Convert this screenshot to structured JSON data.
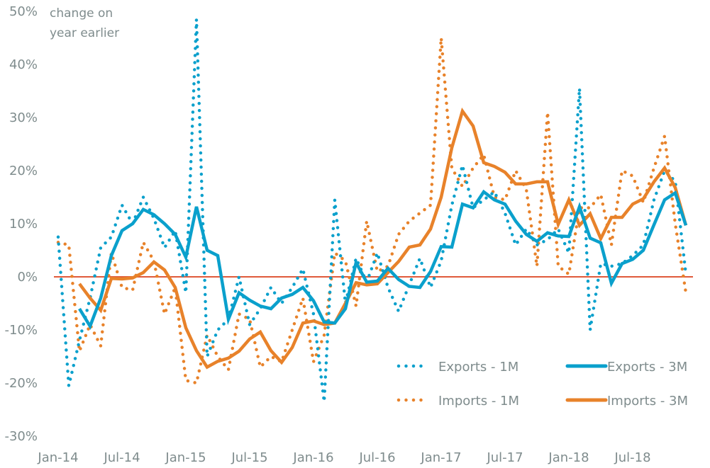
{
  "chart_data": {
    "type": "line",
    "title": "",
    "ylabel_lines": [
      "change on",
      "year earlier"
    ],
    "xlabel": "",
    "ylim": [
      -30,
      50
    ],
    "yticks": [
      50,
      40,
      30,
      20,
      10,
      0,
      -10,
      -20,
      -30
    ],
    "ytick_labels": [
      "50%",
      "40%",
      "30%",
      "20%",
      "10%",
      "0%",
      "-10%",
      "-20%",
      "-30%"
    ],
    "xtick_labels": [
      "Jan-14",
      "Jul-14",
      "Jan-15",
      "Jul-15",
      "Jan-16",
      "Jul-16",
      "Jan-17",
      "Jul-17",
      "Jan-18",
      "Jul-18"
    ],
    "xtick_month_index": [
      0,
      6,
      12,
      18,
      24,
      30,
      36,
      42,
      48,
      54
    ],
    "x_start": "Jan-14",
    "x_end": "Dec-18",
    "n_months": 60,
    "zero_line_color": "#e05a3a",
    "grid": false,
    "legend_position": "bottom-right",
    "series": [
      {
        "name": "Exports - 1M",
        "style": "dotted",
        "color": "#0aa0cc",
        "start_index": 0,
        "values": [
          7.5,
          -20.5,
          -12,
          -4,
          5.5,
          7.5,
          13.5,
          10,
          15,
          11,
          5.5,
          8.7,
          -3,
          48.5,
          -15,
          -10,
          -8,
          0,
          -9,
          -6,
          -2,
          -5,
          -2,
          1.5,
          -7,
          -23.5,
          14.5,
          -5,
          3.5,
          -1,
          4.5,
          -2,
          -6.5,
          -1.5,
          3.5,
          -2,
          3,
          13.5,
          21,
          13,
          14.5,
          16,
          12,
          6,
          9,
          6,
          7,
          9,
          4.5,
          35.5,
          -10,
          2.5,
          2,
          2.5,
          4,
          6,
          14.5,
          20,
          18,
          0.5
        ]
      },
      {
        "name": "Exports - 3M",
        "style": "solid",
        "color": "#0aa0cc",
        "start_index": 2,
        "values": [
          -6,
          -9.3,
          -4,
          4,
          8.7,
          10,
          12.7,
          11.7,
          10,
          8,
          3.7,
          13.2,
          5,
          4,
          -8,
          -3,
          -4.4,
          -5.5,
          -6,
          -4,
          -3.3,
          -2,
          -4.5,
          -8.5,
          -8.7,
          -6,
          2.7,
          -1,
          -0.8,
          1.6,
          -0.5,
          -1.8,
          -2,
          1,
          5.7,
          5.6,
          13.7,
          13,
          16,
          14.5,
          13.7,
          10.5,
          8,
          6.7,
          8.3,
          7.7,
          7.6,
          13.2,
          7.3,
          6.4,
          -1.2,
          2.5,
          3.3,
          5,
          9.8,
          14.5,
          15.8,
          9.7
        ]
      },
      {
        "name": "Imports - 1M",
        "style": "dotted",
        "color": "#e8822a",
        "start_index": 0,
        "values": [
          6.5,
          6,
          -14,
          -9,
          -13,
          4.5,
          -2,
          -2.5,
          6.5,
          3,
          -7,
          -2,
          -19.5,
          -20,
          -11,
          -15,
          -17.5,
          -7,
          -8,
          -17,
          -15,
          -16,
          -10,
          -4,
          -16,
          -11,
          4.5,
          3,
          -5.5,
          10.5,
          1,
          2,
          8,
          10.5,
          12,
          13.5,
          45,
          20.5,
          17,
          20.5,
          23,
          15,
          14.5,
          20,
          16.5,
          2,
          31,
          2,
          0.5,
          13,
          13,
          15.5,
          6,
          20,
          19,
          14,
          20.5,
          26.5,
          10,
          -3
        ]
      },
      {
        "name": "Imports - 3M",
        "style": "solid",
        "color": "#e8822a",
        "start_index": 2,
        "values": [
          -1.3,
          -4,
          -6.3,
          -0.3,
          -0.4,
          -0.2,
          0.8,
          2.8,
          1.3,
          -2,
          -9.6,
          -13.9,
          -17,
          -15.9,
          -15.3,
          -14,
          -11.7,
          -10.4,
          -13.9,
          -16.1,
          -13.3,
          -8.7,
          -8.3,
          -9,
          -8.7,
          -5,
          -1.1,
          -1.5,
          -1.3,
          0.8,
          2.9,
          5.6,
          6,
          9,
          15,
          24.3,
          31.2,
          28.4,
          21.5,
          20.8,
          19.7,
          17.5,
          17.5,
          17.9,
          17.9,
          9.9,
          14.5,
          9.7,
          11.9,
          7.2,
          11.2,
          11.2,
          13.7,
          14.7,
          17.9,
          20.5,
          16.8,
          9.7
        ]
      }
    ]
  }
}
